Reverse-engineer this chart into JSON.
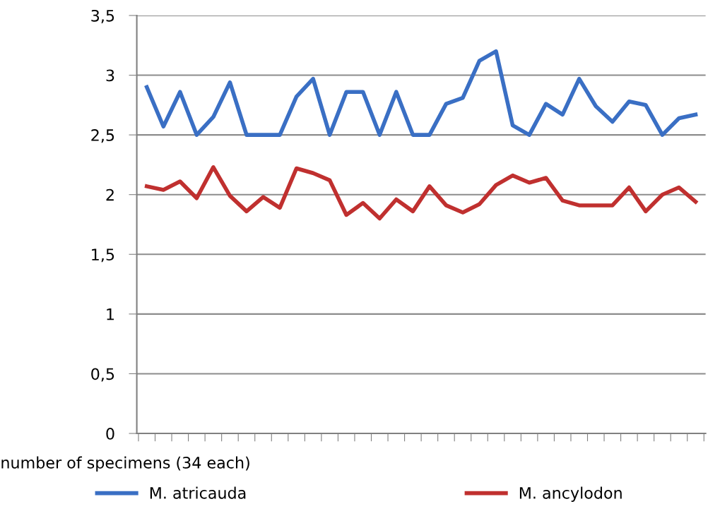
{
  "chart_data": {
    "type": "line",
    "xlabel": "number of specimens (34 each)",
    "categories": [
      null,
      null,
      null,
      null,
      null,
      null,
      null,
      null,
      null,
      null,
      null,
      null,
      null,
      null,
      null,
      null,
      null,
      null,
      null,
      null,
      null,
      null,
      null,
      null,
      null,
      null,
      null,
      null,
      null,
      null,
      null,
      null,
      null,
      null
    ],
    "series": [
      {
        "name": "M. atricauda",
        "color": "#3a6fc4",
        "values": [
          2.9,
          2.57,
          2.86,
          2.5,
          2.65,
          2.94,
          2.5,
          2.5,
          2.5,
          2.82,
          2.97,
          2.5,
          2.86,
          2.86,
          2.5,
          2.86,
          2.5,
          2.5,
          2.76,
          2.81,
          3.12,
          3.2,
          2.58,
          2.5,
          2.76,
          2.67,
          2.97,
          2.74,
          2.61,
          2.78,
          2.75,
          2.5,
          2.64,
          2.67
        ]
      },
      {
        "name": "M. ancylodon",
        "color": "#c0302f",
        "values": [
          2.07,
          2.04,
          2.11,
          1.97,
          2.23,
          1.99,
          1.86,
          1.98,
          1.89,
          2.22,
          2.18,
          2.12,
          1.83,
          1.93,
          1.8,
          1.96,
          1.86,
          2.07,
          1.91,
          1.85,
          1.92,
          2.08,
          2.16,
          2.1,
          2.14,
          1.95,
          1.91,
          1.91,
          1.91,
          2.06,
          1.86,
          2.0,
          2.06,
          1.94
        ]
      }
    ],
    "ylim": [
      0,
      3.5
    ],
    "yticks": [
      0,
      {
        "value": 0.5,
        "label": "0,5"
      },
      1,
      {
        "value": 1.5,
        "label": "1,5"
      },
      2,
      {
        "value": 2.5,
        "label": "2,5"
      },
      3,
      {
        "value": 3.5,
        "label": "3,5"
      }
    ],
    "grid": "y",
    "legend": "bottom",
    "marker": "none",
    "line_style": "solid"
  }
}
